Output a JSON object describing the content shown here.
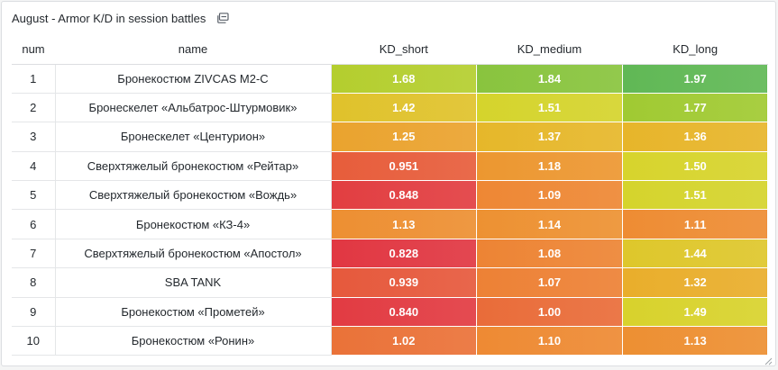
{
  "panel": {
    "title": "August - Armor K/D in session battles",
    "icon": "library-panel-icon"
  },
  "columns": [
    "num",
    "name",
    "KD_short",
    "KD_medium",
    "KD_long"
  ],
  "rows": [
    {
      "num": "1",
      "name": "Бронекостюм ZIVCAS M2-C",
      "KD_short": "1.68",
      "KD_medium": "1.84",
      "KD_long": "1.97"
    },
    {
      "num": "2",
      "name": "Бронескелет «Альбатрос-Штурмовик»",
      "KD_short": "1.42",
      "KD_medium": "1.51",
      "KD_long": "1.77"
    },
    {
      "num": "3",
      "name": "Бронескелет «Центурион»",
      "KD_short": "1.25",
      "KD_medium": "1.37",
      "KD_long": "1.36"
    },
    {
      "num": "4",
      "name": "Сверхтяжелый бронекостюм «Рейтар»",
      "KD_short": "0.951",
      "KD_medium": "1.18",
      "KD_long": "1.50"
    },
    {
      "num": "5",
      "name": "Сверхтяжелый бронекостюм «Вождь»",
      "KD_short": "0.848",
      "KD_medium": "1.09",
      "KD_long": "1.51"
    },
    {
      "num": "6",
      "name": "Бронекостюм «КЗ-4»",
      "KD_short": "1.13",
      "KD_medium": "1.14",
      "KD_long": "1.11"
    },
    {
      "num": "7",
      "name": "Сверхтяжелый бронекостюм «Апостол»",
      "KD_short": "0.828",
      "KD_medium": "1.08",
      "KD_long": "1.44"
    },
    {
      "num": "8",
      "name": "SBA TANK",
      "KD_short": "0.939",
      "KD_medium": "1.07",
      "KD_long": "1.32"
    },
    {
      "num": "9",
      "name": "Бронекостюм «Прометей»",
      "KD_short": "0.840",
      "KD_medium": "1.00",
      "KD_long": "1.49"
    },
    {
      "num": "10",
      "name": "Бронекостюм «Ронин»",
      "KD_short": "1.02",
      "KD_medium": "1.10",
      "KD_long": "1.13"
    }
  ],
  "heat_scale": {
    "stops": [
      {
        "at": 0.8,
        "color": "#e02f44"
      },
      {
        "at": 1.1,
        "color": "#ee8a33"
      },
      {
        "at": 1.35,
        "color": "#e8b32a"
      },
      {
        "at": 1.5,
        "color": "#d7d42c"
      },
      {
        "at": 1.75,
        "color": "#a6cc2f"
      },
      {
        "at": 2.0,
        "color": "#56b55a"
      }
    ]
  }
}
